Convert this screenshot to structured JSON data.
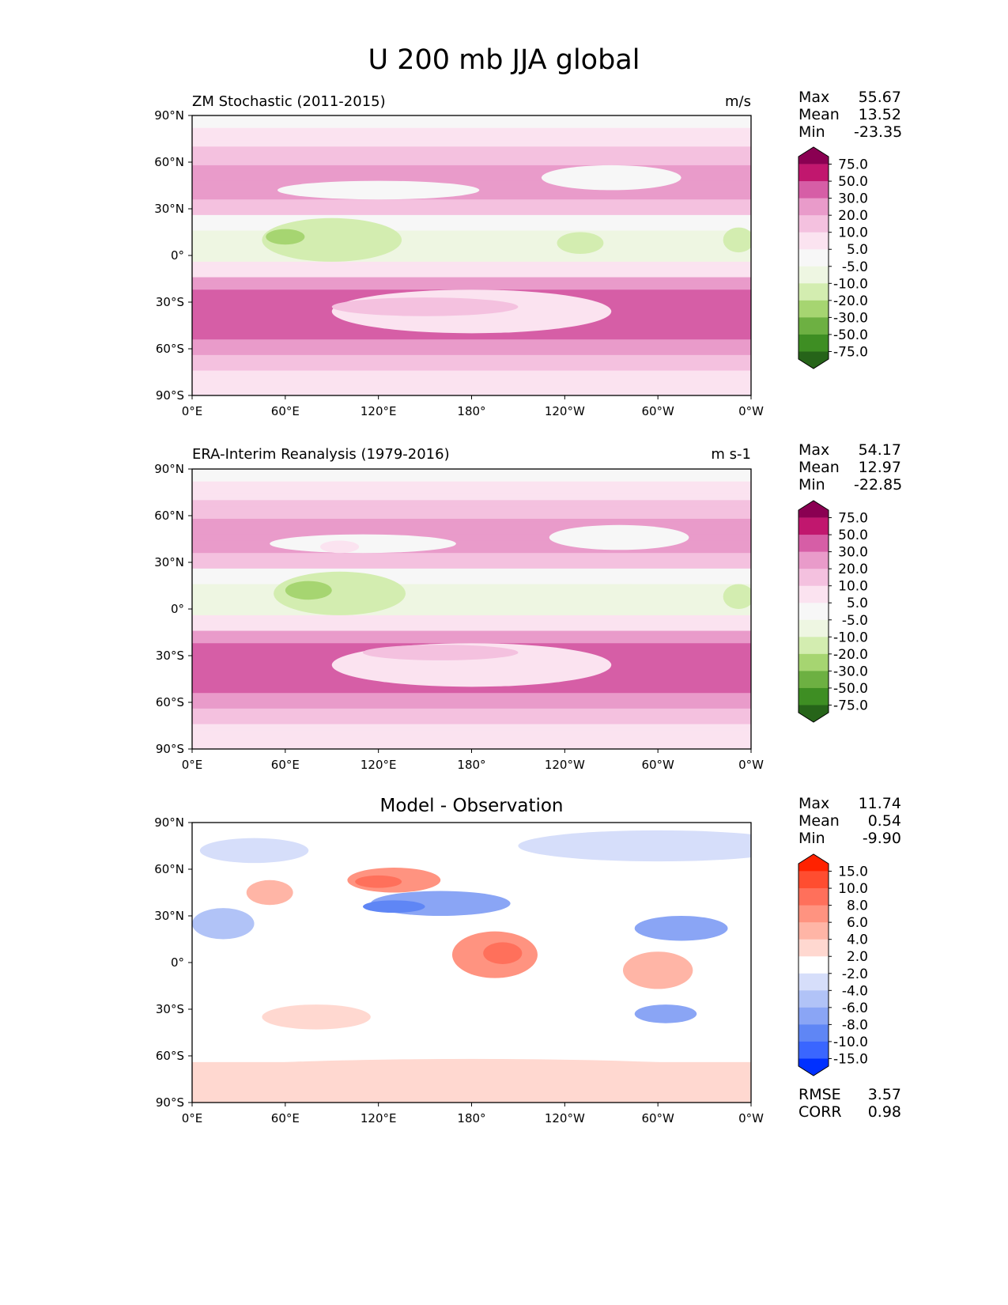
{
  "chart_data": {
    "type": "heatmap",
    "title": "U 200 mb JJA global",
    "panels": [
      {
        "key": "p1",
        "title_left": "ZM Stochastic (2011-2015)",
        "title_right": "m/s",
        "palette": "pink-green",
        "x_ticks": [
          "0°E",
          "60°E",
          "120°E",
          "180°",
          "120°W",
          "60°W",
          "0°W"
        ],
        "y_ticks": [
          "90°N",
          "60°N",
          "30°N",
          "0°",
          "30°S",
          "60°S",
          "90°S"
        ],
        "xlim": [
          0,
          360
        ],
        "ylim": [
          -90,
          90
        ],
        "stats": [
          {
            "label": "Max",
            "value": "55.67"
          },
          {
            "label": "Mean",
            "value": "13.52"
          },
          {
            "label": "Min",
            "value": "-23.35"
          }
        ],
        "colorbar_ticks": [
          "75.0",
          "50.0",
          "30.0",
          "20.0",
          "10.0",
          "5.0",
          "-5.0",
          "-10.0",
          "-20.0",
          "-30.0",
          "-50.0",
          "-75.0"
        ],
        "features": [
          {
            "level": 1,
            "lon": 180,
            "lat": -36,
            "lon_w": 180,
            "lat_h": 14
          },
          {
            "level": 2,
            "lon": 150,
            "lat": -33,
            "lon_w": 120,
            "lat_h": 6
          },
          {
            "level": 0,
            "lon": 120,
            "lat": 42,
            "lon_w": 130,
            "lat_h": 6
          },
          {
            "level": 0,
            "lon": 270,
            "lat": 50,
            "lon_w": 90,
            "lat_h": 8
          },
          {
            "level": -2,
            "lon": 90,
            "lat": 10,
            "lon_w": 90,
            "lat_h": 14
          },
          {
            "level": -3,
            "lon": 60,
            "lat": 12,
            "lon_w": 25,
            "lat_h": 5
          },
          {
            "level": -2,
            "lon": 250,
            "lat": 8,
            "lon_w": 30,
            "lat_h": 7
          },
          {
            "level": -2,
            "lon": 352,
            "lat": 10,
            "lon_w": 20,
            "lat_h": 8
          }
        ]
      },
      {
        "key": "p2",
        "title_left": "ERA-Interim Reanalysis (1979-2016)",
        "title_right": "m s-1",
        "palette": "pink-green",
        "x_ticks": [
          "0°E",
          "60°E",
          "120°E",
          "180°",
          "120°W",
          "60°W",
          "0°W"
        ],
        "y_ticks": [
          "90°N",
          "60°N",
          "30°N",
          "0°",
          "30°S",
          "60°S",
          "90°S"
        ],
        "xlim": [
          0,
          360
        ],
        "ylim": [
          -90,
          90
        ],
        "stats": [
          {
            "label": "Max",
            "value": "54.17"
          },
          {
            "label": "Mean",
            "value": "12.97"
          },
          {
            "label": "Min",
            "value": "-22.85"
          }
        ],
        "colorbar_ticks": [
          "75.0",
          "50.0",
          "30.0",
          "20.0",
          "10.0",
          "5.0",
          "-5.0",
          "-10.0",
          "-20.0",
          "-30.0",
          "-50.0",
          "-75.0"
        ],
        "features": [
          {
            "level": 1,
            "lon": 180,
            "lat": -36,
            "lon_w": 180,
            "lat_h": 14
          },
          {
            "level": 2,
            "lon": 160,
            "lat": -28,
            "lon_w": 100,
            "lat_h": 5
          },
          {
            "level": 0,
            "lon": 110,
            "lat": 42,
            "lon_w": 120,
            "lat_h": 6
          },
          {
            "level": 1,
            "lon": 95,
            "lat": 40,
            "lon_w": 25,
            "lat_h": 4
          },
          {
            "level": 0,
            "lon": 275,
            "lat": 46,
            "lon_w": 90,
            "lat_h": 8
          },
          {
            "level": -2,
            "lon": 95,
            "lat": 10,
            "lon_w": 85,
            "lat_h": 14
          },
          {
            "level": -3,
            "lon": 75,
            "lat": 12,
            "lon_w": 30,
            "lat_h": 6
          },
          {
            "level": -1,
            "lon": 280,
            "lat": 8,
            "lon_w": 40,
            "lat_h": 8
          },
          {
            "level": -2,
            "lon": 352,
            "lat": 8,
            "lon_w": 20,
            "lat_h": 8
          }
        ]
      },
      {
        "key": "p3",
        "title_left": "",
        "title_center": "Model - Observation",
        "title_right": "",
        "palette": "red-blue",
        "x_ticks": [
          "0°E",
          "60°E",
          "120°E",
          "180°",
          "120°W",
          "60°W",
          "0°W"
        ],
        "y_ticks": [
          "90°N",
          "60°N",
          "30°N",
          "0°",
          "30°S",
          "60°S",
          "90°S"
        ],
        "xlim": [
          0,
          360
        ],
        "ylim": [
          -90,
          90
        ],
        "stats": [
          {
            "label": "Max",
            "value": "11.74"
          },
          {
            "label": "Mean",
            "value": "0.54"
          },
          {
            "label": "Min",
            "value": "-9.90"
          }
        ],
        "colorbar_ticks": [
          "15.0",
          "10.0",
          "8.0",
          "6.0",
          "4.0",
          "2.0",
          "-2.0",
          "-4.0",
          "-6.0",
          "-8.0",
          "-10.0",
          "-15.0"
        ],
        "extra_stats": [
          {
            "label": "RMSE",
            "value": "3.57"
          },
          {
            "label": "CORR",
            "value": "0.98"
          }
        ],
        "features": [
          {
            "level": 3,
            "lon": 130,
            "lat": 53,
            "lon_w": 60,
            "lat_h": 8
          },
          {
            "level": 4,
            "lon": 120,
            "lat": 52,
            "lon_w": 30,
            "lat_h": 4
          },
          {
            "level": 2,
            "lon": 50,
            "lat": 45,
            "lon_w": 30,
            "lat_h": 8
          },
          {
            "level": -3,
            "lon": 160,
            "lat": 38,
            "lon_w": 90,
            "lat_h": 8
          },
          {
            "level": -4,
            "lon": 130,
            "lat": 36,
            "lon_w": 40,
            "lat_h": 4
          },
          {
            "level": -2,
            "lon": 20,
            "lat": 25,
            "lon_w": 40,
            "lat_h": 10
          },
          {
            "level": 3,
            "lon": 195,
            "lat": 5,
            "lon_w": 55,
            "lat_h": 15
          },
          {
            "level": 4,
            "lon": 200,
            "lat": 6,
            "lon_w": 25,
            "lat_h": 7
          },
          {
            "level": -3,
            "lon": 315,
            "lat": 22,
            "lon_w": 60,
            "lat_h": 8
          },
          {
            "level": 2,
            "lon": 300,
            "lat": -5,
            "lon_w": 45,
            "lat_h": 12
          },
          {
            "level": -3,
            "lon": 305,
            "lat": -33,
            "lon_w": 40,
            "lat_h": 6
          },
          {
            "level": 1,
            "lon": 80,
            "lat": -35,
            "lon_w": 70,
            "lat_h": 8
          },
          {
            "level": -1,
            "lon": 300,
            "lat": 75,
            "lon_w": 180,
            "lat_h": 10
          },
          {
            "level": -1,
            "lon": 40,
            "lat": 72,
            "lon_w": 70,
            "lat_h": 8
          },
          {
            "level": 1,
            "lon": 180,
            "lat": -70,
            "lon_w": 360,
            "lat_h": 8
          }
        ]
      }
    ]
  },
  "palettes": {
    "pink-green": [
      "#266419",
      "#3e8e23",
      "#6db042",
      "#a6d571",
      "#d3edb0",
      "#eef6e2",
      "#f7f7f7",
      "#fbe3f0",
      "#f4c1df",
      "#e99bca",
      "#d65ea6",
      "#c1176e",
      "#8a0052"
    ],
    "red-blue": [
      "#0030ff",
      "#3a66ff",
      "#5f86f5",
      "#8aa5f5",
      "#b1c3f7",
      "#d6defa",
      "#ffffff",
      "#ffd8d0",
      "#ffb5a6",
      "#ff9380",
      "#ff705b",
      "#ff4d30",
      "#ff2200"
    ]
  }
}
